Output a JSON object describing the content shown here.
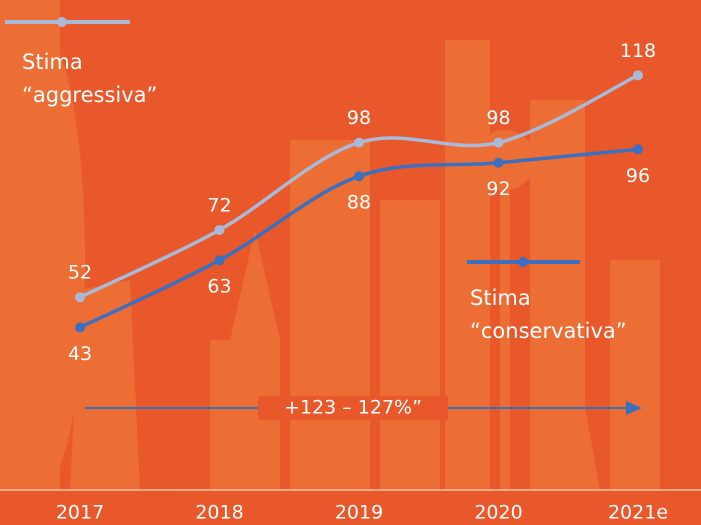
{
  "chart_data": {
    "type": "line",
    "categories": [
      "2017",
      "2018",
      "2019",
      "2020",
      "2021e"
    ],
    "series": [
      {
        "name": "Stima\n“aggressiva”",
        "color": "#a9b9d8",
        "values": [
          52,
          72,
          98,
          98,
          118
        ]
      },
      {
        "name": "Stima\n“conservativa”",
        "color": "#3b6fbf",
        "values": [
          43,
          63,
          88,
          92,
          96
        ]
      }
    ],
    "ylim": [
      0,
      130
    ],
    "annotation": "+123 – 127%”"
  }
}
